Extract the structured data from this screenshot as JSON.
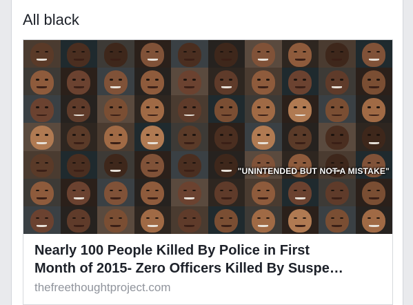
{
  "post": {
    "text": "All black"
  },
  "link": {
    "title_line1": "Nearly 100 People Killed By Police in First",
    "title_line2": "Month of 2015- Zero Officers Killed By Suspe…",
    "domain": "thefreethoughtproject.com",
    "image_caption": "\"UNINTENDED BUT NOT A MISTAKE\""
  },
  "colors": {
    "page_bg": "#e9eaed",
    "card_bg": "#ffffff",
    "title": "#1d2129",
    "domain": "#90949c"
  }
}
